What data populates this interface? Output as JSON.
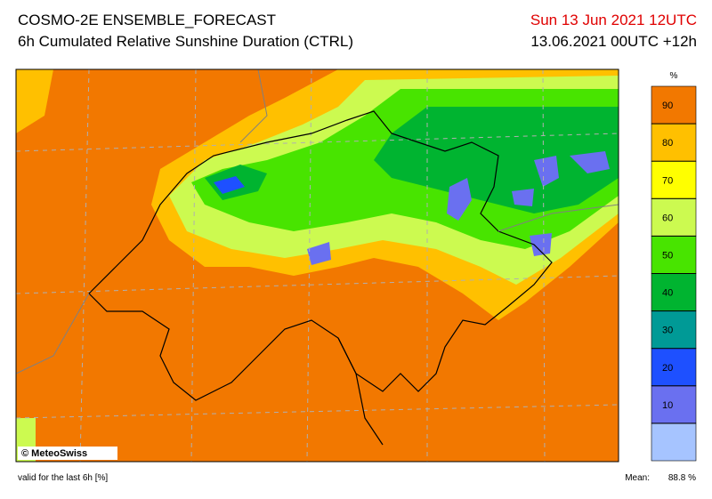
{
  "header": {
    "title": "COSMO-2E ENSEMBLE_FORECAST",
    "subtitle": "6h Cumulated Relative Sunshine Duration (CTRL)",
    "valid_time": "Sun 13 Jun 2021 12UTC",
    "run_time": "13.06.2021 00UTC +12h"
  },
  "map": {
    "credit": "© MeteoSwiss"
  },
  "colorbar": {
    "unit": "%",
    "ticks": [
      10,
      20,
      30,
      40,
      50,
      60,
      70,
      80,
      90
    ],
    "colors": [
      "#a6c4ff",
      "#6a70f0",
      "#1e50ff",
      "#009a96",
      "#00b430",
      "#48e400",
      "#ccfa50",
      "#ffff00",
      "#ffc000",
      "#f27800"
    ]
  },
  "footer": {
    "note": "valid for the last 6h [%]",
    "mean_label": "Mean:",
    "mean_value": "88.8 %"
  }
}
